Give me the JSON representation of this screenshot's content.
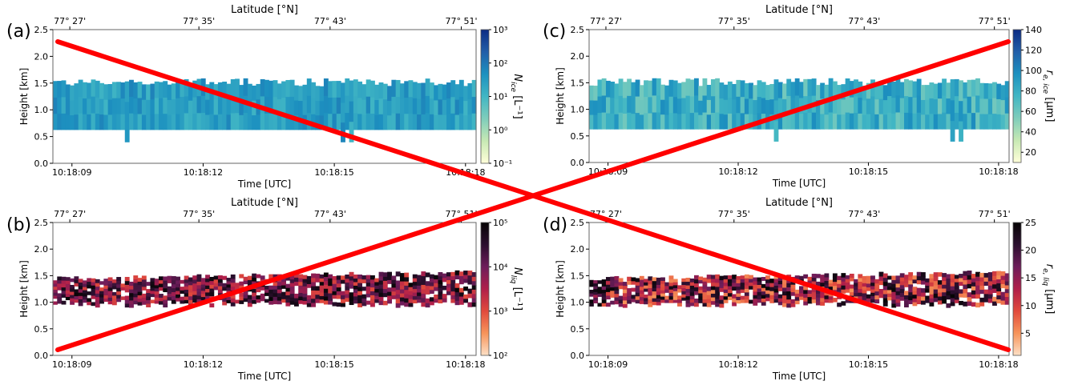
{
  "chart_data": [
    {
      "type": "heatmap",
      "panel_label": "(a)",
      "top_axis_label": "Latitude [°N]",
      "top_ticks": [
        "77° 27'",
        "77° 35'",
        "77° 43'",
        "77° 51'"
      ],
      "top_tick_frac": [
        0.04,
        0.345,
        0.655,
        0.965
      ],
      "xlabel": "Time [UTC]",
      "x_ticks": [
        "10:18:09",
        "10:18:12",
        "10:18:15",
        "10:18:18"
      ],
      "x_tick_frac": [
        0.045,
        0.355,
        0.665,
        0.975
      ],
      "ylabel": "Height [km]",
      "ylim": [
        0,
        2.5
      ],
      "y_ticks": [
        0.0,
        0.5,
        1.0,
        1.5,
        2.0,
        2.5
      ],
      "colorbar": {
        "label": "N_ice [L⁻¹]",
        "label_main": "N",
        "label_sub": "ice",
        "label_unit": "[L⁻¹]",
        "ticks": [
          "10⁻¹",
          "10⁰",
          "10¹",
          "10²",
          "10³"
        ],
        "scale": "log",
        "range": [
          -1,
          3
        ],
        "colors": [
          "#ffffd9",
          "#c7e9b4",
          "#7fcdbb",
          "#41b6c4",
          "#1d91c0",
          "#225ea8",
          "#0c2c84"
        ]
      },
      "cloud": {
        "n_cols": 100,
        "base_km": 0.63,
        "top_km": 1.5,
        "value_min": 1.0,
        "value_max": 2.4,
        "value_mean": 1.45,
        "scattered": false
      }
    },
    {
      "type": "heatmap",
      "panel_label": "(b)",
      "top_axis_label": "Latitude [°N]",
      "top_ticks": [
        "77° 27'",
        "77° 35'",
        "77° 43'",
        "77° 51'"
      ],
      "top_tick_frac": [
        0.04,
        0.345,
        0.655,
        0.965
      ],
      "xlabel": "Time [UTC]",
      "x_ticks": [
        "10:18:09",
        "10:18:12",
        "10:18:15",
        "10:18:18"
      ],
      "x_tick_frac": [
        0.045,
        0.355,
        0.665,
        0.975
      ],
      "ylabel": "Height [km]",
      "ylim": [
        0,
        2.5
      ],
      "y_ticks": [
        0.0,
        0.5,
        1.0,
        1.5,
        2.0,
        2.5
      ],
      "colorbar": {
        "label": "N_liq [L⁻¹]",
        "label_main": "N",
        "label_sub": "liq",
        "label_unit": "[L⁻¹]",
        "ticks": [
          "10²",
          "10³",
          "10⁴",
          "10⁵"
        ],
        "scale": "log",
        "range": [
          2,
          5
        ],
        "colors": [
          "#fde0c5",
          "#f7945a",
          "#e14a3c",
          "#b01f4a",
          "#6e1d5a",
          "#2b0f2e",
          "#060505"
        ]
      },
      "cloud": {
        "n_cols": 100,
        "base_km": 1.05,
        "top_km": 1.45,
        "value_min": 3.0,
        "value_max": 5.0,
        "value_mean": 4.1,
        "scattered": true
      }
    },
    {
      "type": "heatmap",
      "panel_label": "(c)",
      "top_axis_label": "Latitude [°N]",
      "top_ticks": [
        "77° 27'",
        "77° 35'",
        "77° 43'",
        "77° 51'"
      ],
      "top_tick_frac": [
        0.04,
        0.345,
        0.655,
        0.965
      ],
      "xlabel": "Time [UTC]",
      "x_ticks": [
        "10:18:09",
        "10:18:12",
        "10:18:15",
        "10:18:18"
      ],
      "x_tick_frac": [
        0.045,
        0.355,
        0.665,
        0.975
      ],
      "ylabel": "Height [km]",
      "ylim": [
        0,
        2.5
      ],
      "y_ticks": [
        0.0,
        0.5,
        1.0,
        1.5,
        2.0,
        2.5
      ],
      "colorbar": {
        "label": "r_e,ice [μm]",
        "label_main": "r",
        "label_sub": "e, ice",
        "label_unit": "[μm]",
        "ticks": [
          "20",
          "40",
          "60",
          "80",
          "100",
          "120",
          "140"
        ],
        "scale": "linear",
        "range": [
          10,
          140
        ],
        "colors": [
          "#ffffd9",
          "#c7e9b4",
          "#7fcdbb",
          "#41b6c4",
          "#1d91c0",
          "#225ea8",
          "#0c2c84"
        ]
      },
      "cloud": {
        "n_cols": 100,
        "base_km": 0.63,
        "top_km": 1.5,
        "value_min": 40,
        "value_max": 110,
        "value_mean": 78,
        "scattered": false
      }
    },
    {
      "type": "heatmap",
      "panel_label": "(d)",
      "top_axis_label": "Latitude [°N]",
      "top_ticks": [
        "77° 27'",
        "77° 35'",
        "77° 43'",
        "77° 51'"
      ],
      "top_tick_frac": [
        0.04,
        0.345,
        0.655,
        0.965
      ],
      "xlabel": "Time [UTC]",
      "x_ticks": [
        "10:18:09",
        "10:18:12",
        "10:18:15",
        "10:18:18"
      ],
      "x_tick_frac": [
        0.045,
        0.355,
        0.665,
        0.975
      ],
      "ylabel": "Height [km]",
      "ylim": [
        0,
        2.5
      ],
      "y_ticks": [
        0.0,
        0.5,
        1.0,
        1.5,
        2.0,
        2.5
      ],
      "colorbar": {
        "label": "r_e,liq [μm]",
        "label_main": "r",
        "label_sub": "e, liq",
        "label_unit": "[μm]",
        "ticks": [
          "5",
          "10",
          "15",
          "20",
          "25"
        ],
        "scale": "linear",
        "range": [
          1,
          25
        ],
        "colors": [
          "#fde0c5",
          "#f7945a",
          "#e14a3c",
          "#b01f4a",
          "#6e1d5a",
          "#2b0f2e",
          "#060505"
        ]
      },
      "cloud": {
        "n_cols": 100,
        "base_km": 1.05,
        "top_km": 1.45,
        "value_min": 5,
        "value_max": 25,
        "value_mean": 12,
        "scattered": true
      }
    }
  ],
  "overlay": {
    "type": "red-cross",
    "color": "#ff0000"
  }
}
